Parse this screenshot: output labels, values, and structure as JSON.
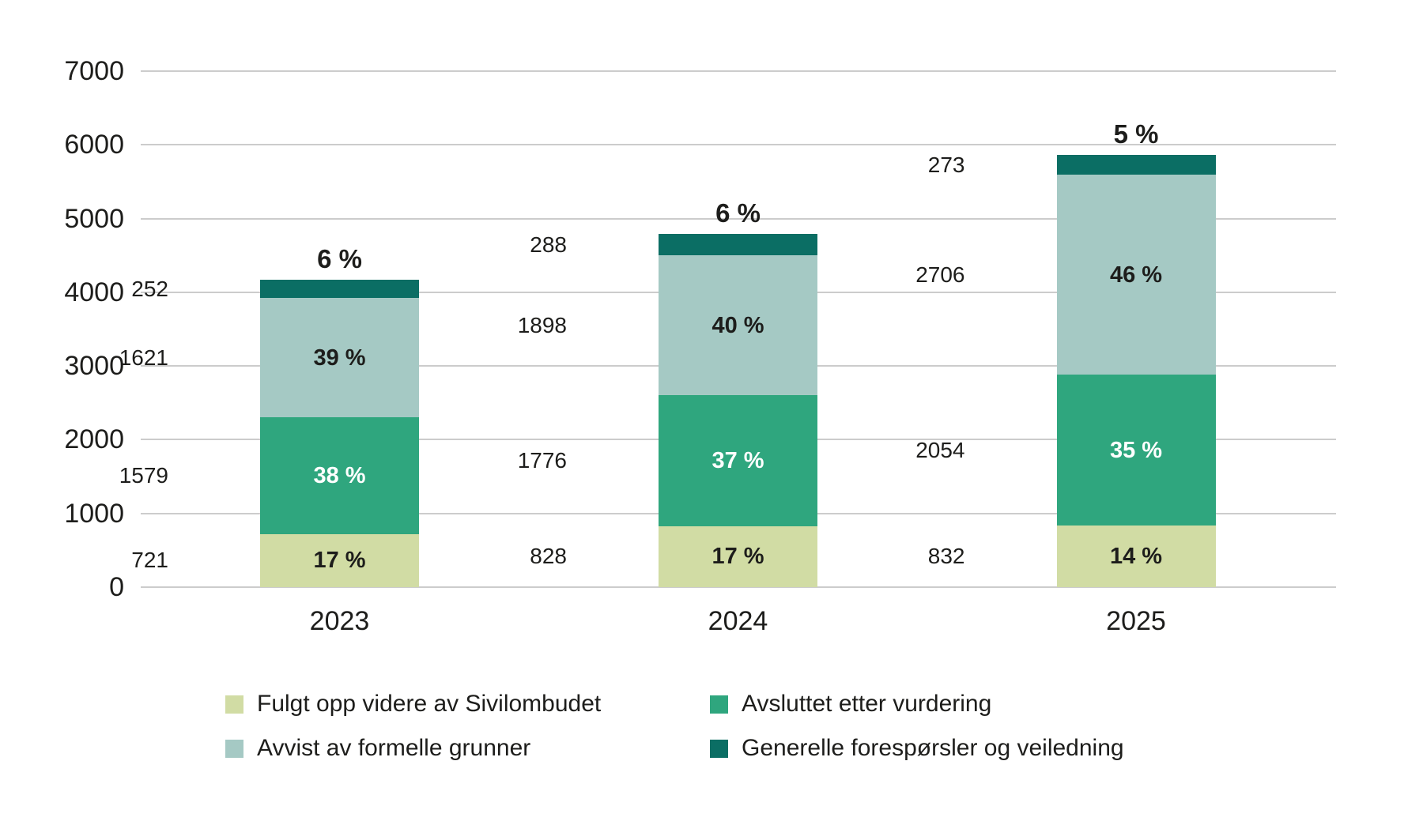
{
  "chart_data": {
    "type": "bar",
    "subtype": "stacked-vertical",
    "title": "",
    "xlabel": "",
    "ylabel": "",
    "categories": [
      "2023",
      "2024",
      "2025"
    ],
    "series": [
      {
        "name": "Fulgt opp videre av Sivilombudet",
        "color": "#d1dca4",
        "values": [
          721,
          828,
          832
        ],
        "pct_labels": [
          "17 %",
          "17 %",
          "14 %"
        ],
        "pct_position": "inside",
        "pct_color": "#1d1d1b"
      },
      {
        "name": "Avsluttet etter vurdering",
        "color": "#2fa67e",
        "values": [
          1579,
          1776,
          2054
        ],
        "pct_labels": [
          "38 %",
          "37 %",
          "35 %"
        ],
        "pct_position": "inside",
        "pct_color": "#ffffff"
      },
      {
        "name": "Avvist av formelle grunner",
        "color": "#a5c9c4",
        "values": [
          1621,
          1898,
          2706
        ],
        "pct_labels": [
          "39 %",
          "40 %",
          "46 %"
        ],
        "pct_position": "inside",
        "pct_color": "#1d1d1b"
      },
      {
        "name": "Generelle forespørsler og veiledning",
        "color": "#0b6e64",
        "values": [
          252,
          288,
          273
        ],
        "pct_labels": [
          "6 %",
          "6 %",
          "5 %"
        ],
        "pct_position": "above",
        "pct_color": "#1d1d1b"
      }
    ],
    "totals": [
      4173,
      4790,
      5865
    ],
    "y_ticks": [
      7000,
      6000,
      5000,
      4000,
      3000,
      2000,
      1000,
      0
    ],
    "ylim": [
      0,
      7000
    ],
    "grid": true,
    "grid_color": "#cccccc",
    "text_color": "#1d1d1b",
    "background": "#ffffff",
    "legend_position": "bottom",
    "legend": [
      {
        "label": "Fulgt opp videre av Sivilombudet",
        "color": "#d1dca4"
      },
      {
        "label": "Avsluttet etter vurdering",
        "color": "#2fa67e"
      },
      {
        "label": "Avvist av formelle grunner",
        "color": "#a5c9c4"
      },
      {
        "label": "Generelle forespørsler og veiledning",
        "color": "#0b6e64"
      }
    ]
  }
}
